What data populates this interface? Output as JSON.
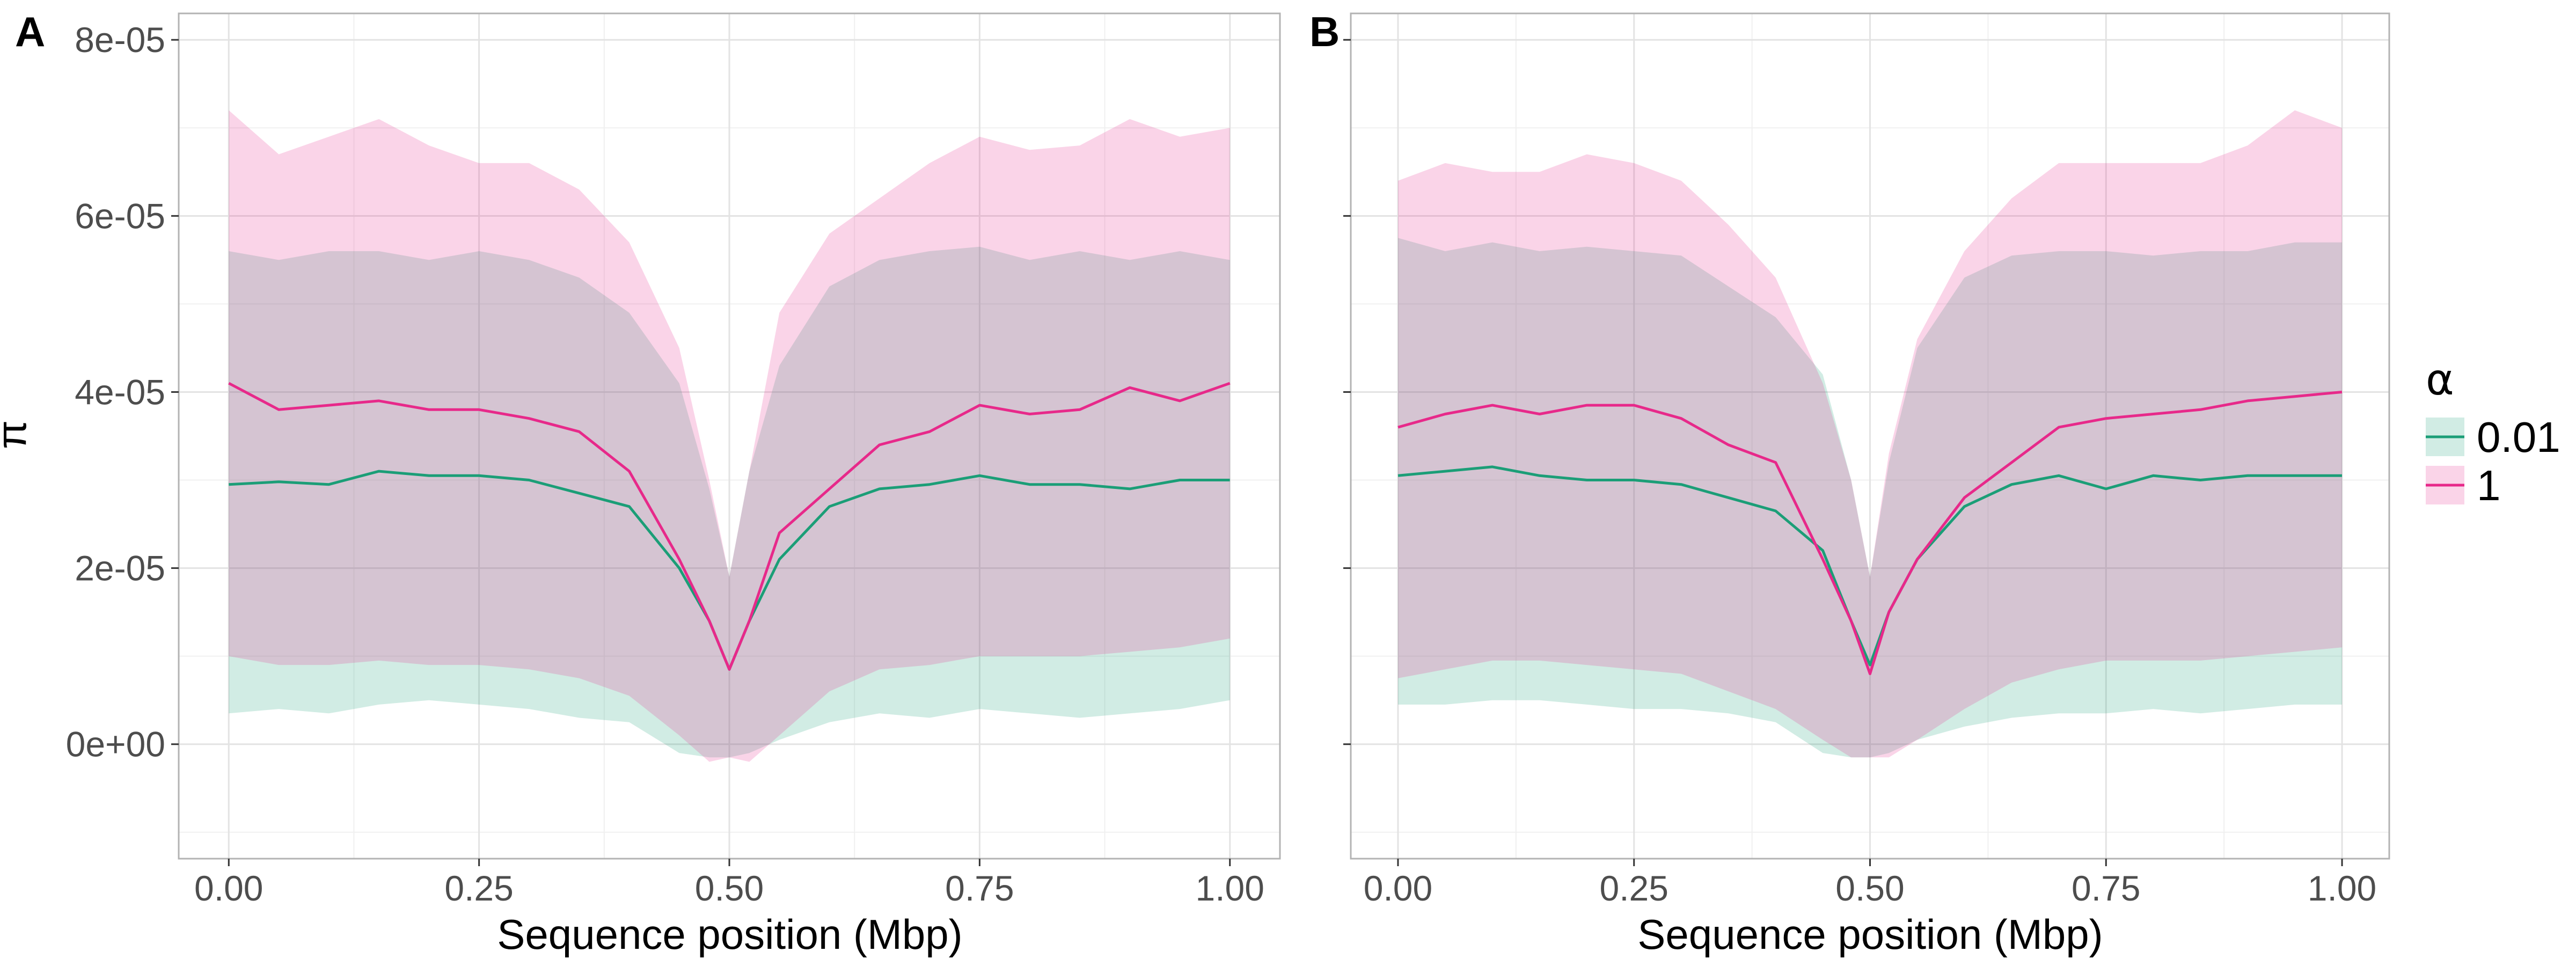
{
  "chart_data": {
    "type": "area",
    "panels": [
      {
        "tag": "A",
        "xlabel": "Sequence position (Mbp)",
        "ylabel": "π",
        "xlim": [
          -0.05,
          1.05
        ],
        "ylim": [
          -1.3e-05,
          8.3e-05
        ],
        "x_ticks": [
          0.0,
          0.25,
          0.5,
          0.75,
          1.0
        ],
        "x_tick_labels": [
          "0.00",
          "0.25",
          "0.50",
          "0.75",
          "1.00"
        ],
        "y_ticks": [
          0,
          2e-05,
          4e-05,
          6e-05,
          8e-05
        ],
        "y_tick_labels": [
          "0e+00",
          "2e-05",
          "4e-05",
          "6e-05",
          "8e-05"
        ],
        "x": [
          0.0,
          0.05,
          0.1,
          0.15,
          0.2,
          0.25,
          0.3,
          0.35,
          0.4,
          0.45,
          0.48,
          0.5,
          0.52,
          0.55,
          0.6,
          0.65,
          0.7,
          0.75,
          0.8,
          0.85,
          0.9,
          0.95,
          1.0
        ],
        "series": [
          {
            "name": "0.01",
            "color": "#1b9e77",
            "mean": [
              2.95e-05,
              2.98e-05,
              2.95e-05,
              3.1e-05,
              3.05e-05,
              3.05e-05,
              3e-05,
              2.85e-05,
              2.7e-05,
              2e-05,
              1.4e-05,
              8.5e-06,
              1.4e-05,
              2.1e-05,
              2.7e-05,
              2.9e-05,
              2.95e-05,
              3.05e-05,
              2.95e-05,
              2.95e-05,
              2.9e-05,
              3e-05,
              3e-05
            ],
            "lower": [
              3.5e-06,
              4e-06,
              3.5e-06,
              4.5e-06,
              5e-06,
              4.5e-06,
              4e-06,
              3e-06,
              2.5e-06,
              -1e-06,
              -1.5e-06,
              -1.5e-06,
              -1e-06,
              5e-07,
              2.5e-06,
              3.5e-06,
              3e-06,
              4e-06,
              3.5e-06,
              3e-06,
              3.5e-06,
              4e-06,
              5e-06
            ],
            "upper": [
              5.6e-05,
              5.5e-05,
              5.6e-05,
              5.6e-05,
              5.5e-05,
              5.6e-05,
              5.5e-05,
              5.3e-05,
              4.9e-05,
              4.1e-05,
              2.9e-05,
              1.9e-05,
              3.1e-05,
              4.3e-05,
              5.2e-05,
              5.5e-05,
              5.6e-05,
              5.65e-05,
              5.5e-05,
              5.6e-05,
              5.5e-05,
              5.6e-05,
              5.5e-05
            ]
          },
          {
            "name": "1",
            "color": "#e7298a",
            "mean": [
              4.1e-05,
              3.8e-05,
              3.85e-05,
              3.9e-05,
              3.8e-05,
              3.8e-05,
              3.7e-05,
              3.55e-05,
              3.1e-05,
              2.1e-05,
              1.4e-05,
              8.5e-06,
              1.4e-05,
              2.4e-05,
              2.9e-05,
              3.4e-05,
              3.55e-05,
              3.85e-05,
              3.75e-05,
              3.8e-05,
              4.05e-05,
              3.9e-05,
              4.1e-05
            ],
            "lower": [
              1e-05,
              9e-06,
              9e-06,
              9.5e-06,
              9e-06,
              9e-06,
              8.5e-06,
              7.5e-06,
              5.5e-06,
              1e-06,
              -2e-06,
              -1.5e-06,
              -2e-06,
              1e-06,
              6e-06,
              8.5e-06,
              9e-06,
              1e-05,
              1e-05,
              1e-05,
              1.05e-05,
              1.1e-05,
              1.2e-05
            ],
            "upper": [
              7.2e-05,
              6.7e-05,
              6.9e-05,
              7.1e-05,
              6.8e-05,
              6.6e-05,
              6.6e-05,
              6.3e-05,
              5.7e-05,
              4.5e-05,
              3e-05,
              1.9e-05,
              3.1e-05,
              4.9e-05,
              5.8e-05,
              6.2e-05,
              6.6e-05,
              6.9e-05,
              6.75e-05,
              6.8e-05,
              7.1e-05,
              6.9e-05,
              7e-05
            ]
          }
        ]
      },
      {
        "tag": "B",
        "xlabel": "Sequence position (Mbp)",
        "ylabel": "",
        "xlim": [
          -0.05,
          1.05
        ],
        "ylim": [
          -1.3e-05,
          8.3e-05
        ],
        "x_ticks": [
          0.0,
          0.25,
          0.5,
          0.75,
          1.0
        ],
        "x_tick_labels": [
          "0.00",
          "0.25",
          "0.50",
          "0.75",
          "1.00"
        ],
        "y_ticks": [
          0,
          2e-05,
          4e-05,
          6e-05,
          8e-05
        ],
        "y_tick_labels": [],
        "x": [
          0.0,
          0.05,
          0.1,
          0.15,
          0.2,
          0.25,
          0.3,
          0.35,
          0.4,
          0.45,
          0.48,
          0.5,
          0.52,
          0.55,
          0.6,
          0.65,
          0.7,
          0.75,
          0.8,
          0.85,
          0.9,
          0.95,
          1.0
        ],
        "series": [
          {
            "name": "0.01",
            "color": "#1b9e77",
            "mean": [
              3.05e-05,
              3.1e-05,
              3.15e-05,
              3.05e-05,
              3e-05,
              3e-05,
              2.95e-05,
              2.8e-05,
              2.65e-05,
              2.2e-05,
              1.4e-05,
              9e-06,
              1.5e-05,
              2.1e-05,
              2.7e-05,
              2.95e-05,
              3.05e-05,
              2.9e-05,
              3.05e-05,
              3e-05,
              3.05e-05,
              3.05e-05,
              3.05e-05
            ],
            "lower": [
              4.5e-06,
              4.5e-06,
              5e-06,
              5e-06,
              4.5e-06,
              4e-06,
              4e-06,
              3.5e-06,
              2.5e-06,
              -1e-06,
              -1.5e-06,
              -1.5e-06,
              -1e-06,
              5e-07,
              2e-06,
              3e-06,
              3.5e-06,
              3.5e-06,
              4e-06,
              3.5e-06,
              4e-06,
              4.5e-06,
              4.5e-06
            ],
            "upper": [
              5.75e-05,
              5.6e-05,
              5.7e-05,
              5.6e-05,
              5.65e-05,
              5.6e-05,
              5.55e-05,
              5.2e-05,
              4.85e-05,
              4.2e-05,
              3e-05,
              1.9e-05,
              3.2e-05,
              4.5e-05,
              5.3e-05,
              5.55e-05,
              5.6e-05,
              5.6e-05,
              5.55e-05,
              5.6e-05,
              5.6e-05,
              5.7e-05,
              5.7e-05
            ]
          },
          {
            "name": "1",
            "color": "#e7298a",
            "mean": [
              3.6e-05,
              3.75e-05,
              3.85e-05,
              3.75e-05,
              3.85e-05,
              3.85e-05,
              3.7e-05,
              3.4e-05,
              3.2e-05,
              2.1e-05,
              1.4e-05,
              8e-06,
              1.5e-05,
              2.1e-05,
              2.8e-05,
              3.2e-05,
              3.6e-05,
              3.7e-05,
              3.75e-05,
              3.8e-05,
              3.9e-05,
              3.95e-05,
              4e-05
            ],
            "lower": [
              7.5e-06,
              8.5e-06,
              9.5e-06,
              9.5e-06,
              9e-06,
              8.5e-06,
              8e-06,
              6e-06,
              4e-06,
              5e-07,
              -1.5e-06,
              -1.5e-06,
              -1.5e-06,
              5e-07,
              4e-06,
              7e-06,
              8.5e-06,
              9.5e-06,
              9.5e-06,
              9.5e-06,
              1e-05,
              1.05e-05,
              1.1e-05
            ],
            "upper": [
              6.4e-05,
              6.6e-05,
              6.5e-05,
              6.5e-05,
              6.7e-05,
              6.6e-05,
              6.4e-05,
              5.9e-05,
              5.3e-05,
              4.1e-05,
              3e-05,
              1.9e-05,
              3.3e-05,
              4.6e-05,
              5.6e-05,
              6.2e-05,
              6.6e-05,
              6.6e-05,
              6.6e-05,
              6.6e-05,
              6.8e-05,
              7.2e-05,
              7e-05
            ]
          }
        ]
      }
    ],
    "legend": {
      "title": "α",
      "position": "right",
      "entries": [
        "0.01",
        "1"
      ]
    },
    "grid": true
  }
}
